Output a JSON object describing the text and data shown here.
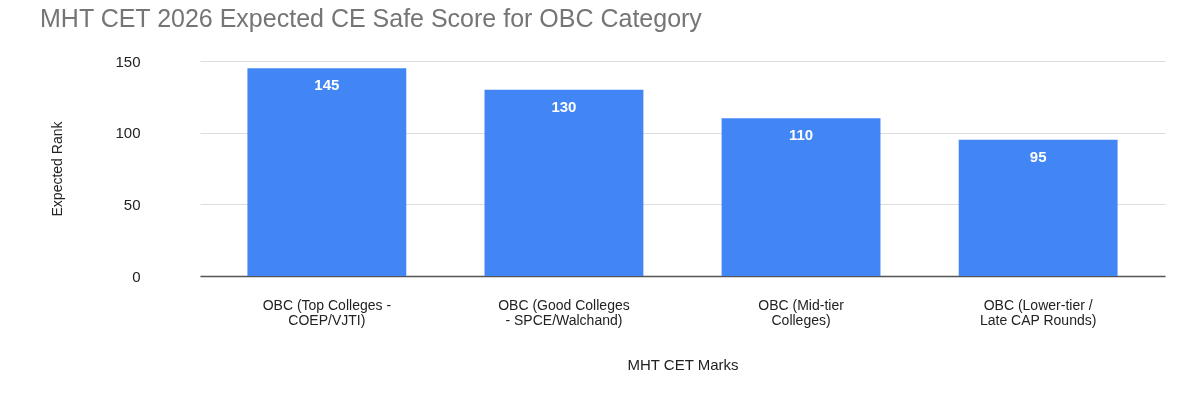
{
  "chart_data": {
    "type": "bar",
    "title": "MHT CET 2026 Expected CE Safe Score for OBC Category",
    "xlabel": "MHT CET Marks",
    "ylabel": "Expected Rank",
    "categories": [
      "OBC (Top Colleges - COEP/VJTI)",
      "OBC (Good Colleges - SPCE/Walchand)",
      "OBC (Mid-tier Colleges)",
      "OBC (Lower-tier / Late CAP Rounds)"
    ],
    "values": [
      145,
      130,
      110,
      95
    ],
    "color": "#4285f4",
    "ylim": [
      0,
      150
    ],
    "yticks": [
      0,
      50,
      100,
      150
    ],
    "grid": "y",
    "data_labels": true
  }
}
